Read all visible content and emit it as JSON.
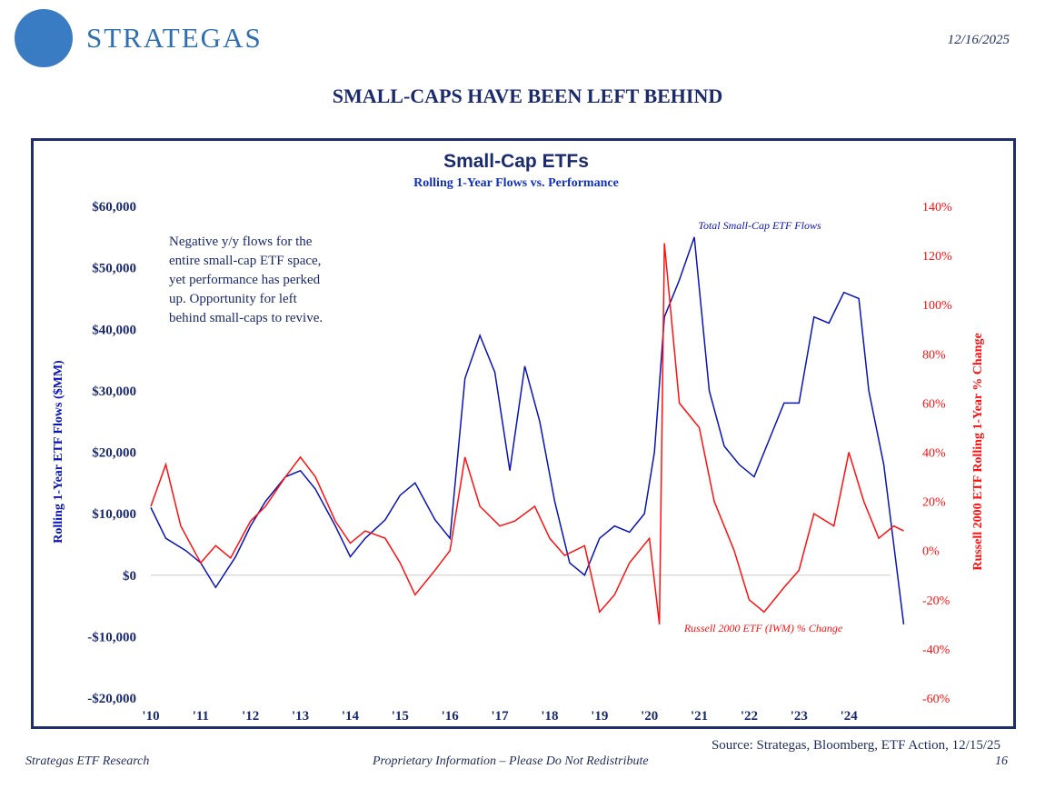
{
  "header": {
    "brand": "STRATEGAS",
    "date": "12/16/2025",
    "title": "SMALL-CAPS HAVE BEEN LEFT BEHIND"
  },
  "footer": {
    "source": "Source: Strategas, Bloomberg, ETF Action, 12/15/25",
    "left": "Strategas ETF Research",
    "center": "Proprietary Information – Please Do Not Redistribute",
    "page": "16"
  },
  "annotation": [
    "Negative y/y flows for the",
    "entire small-cap ETF space,",
    "yet performance has perked",
    "up. Opportunity for left",
    "behind small-caps to revive."
  ],
  "chart_data": {
    "type": "line",
    "title": "Small-Cap ETFs",
    "subtitle": "Rolling 1-Year Flows vs. Performance",
    "ylabel": "Rolling 1-Year ETF Flows ($MM)",
    "y2label": "Russell 2000 ETF Rolling 1-Year % Change",
    "ylim": [
      -20000,
      60000
    ],
    "y2lim": [
      -60,
      140
    ],
    "yticks": [
      "$60,000",
      "$50,000",
      "$40,000",
      "$30,000",
      "$20,000",
      "$10,000",
      "$0",
      "-$10,000",
      "-$20,000"
    ],
    "y2ticks": [
      "140%",
      "120%",
      "100%",
      "80%",
      "60%",
      "40%",
      "20%",
      "0%",
      "-20%",
      "-40%",
      "-60%"
    ],
    "xticks": [
      "'10",
      "'11",
      "'12",
      "'13",
      "'14",
      "'15",
      "'16",
      "'17",
      "'18",
      "'19",
      "'20",
      "'21",
      "'22",
      "'23",
      "'24"
    ],
    "xlim": [
      2010,
      2025.2
    ],
    "series": [
      {
        "name": "Total Small-Cap ETF Flows",
        "axis": "left",
        "color": "#0a14b4",
        "x": [
          2010,
          2010.3,
          2010.7,
          2011,
          2011.3,
          2011.7,
          2012,
          2012.3,
          2012.7,
          2013,
          2013.3,
          2013.7,
          2014,
          2014.3,
          2014.7,
          2015,
          2015.3,
          2015.7,
          2016,
          2016.3,
          2016.6,
          2016.9,
          2017.2,
          2017.5,
          2017.8,
          2018.1,
          2018.4,
          2018.7,
          2019,
          2019.3,
          2019.6,
          2019.9,
          2020.1,
          2020.3,
          2020.6,
          2020.9,
          2021.2,
          2021.5,
          2021.8,
          2022.1,
          2022.4,
          2022.7,
          2023,
          2023.3,
          2023.6,
          2023.9,
          2024.2,
          2024.4,
          2024.7,
          2024.9,
          2025.1
        ],
        "values": [
          11000,
          6000,
          4000,
          2000,
          -2000,
          3000,
          8000,
          12000,
          16000,
          17000,
          14000,
          8000,
          3000,
          6000,
          9000,
          13000,
          15000,
          9000,
          6000,
          32000,
          39000,
          33000,
          17000,
          34000,
          25000,
          12000,
          2000,
          0,
          6000,
          8000,
          7000,
          10000,
          20000,
          42000,
          48000,
          55000,
          30000,
          21000,
          18000,
          16000,
          22000,
          28000,
          28000,
          42000,
          41000,
          46000,
          45000,
          30000,
          18000,
          5000,
          -8000
        ]
      },
      {
        "name": "Russell 2000 ETF (IWM) % Change",
        "axis": "right",
        "color": "#ff1010",
        "x": [
          2010,
          2010.3,
          2010.6,
          2011,
          2011.3,
          2011.6,
          2012,
          2012.3,
          2012.7,
          2013,
          2013.3,
          2013.7,
          2014,
          2014.3,
          2014.7,
          2015,
          2015.3,
          2015.7,
          2016,
          2016.3,
          2016.6,
          2017,
          2017.3,
          2017.7,
          2018,
          2018.3,
          2018.7,
          2019,
          2019.3,
          2019.6,
          2020,
          2020.2,
          2020.3,
          2020.6,
          2021,
          2021.3,
          2021.7,
          2022,
          2022.3,
          2022.7,
          2023,
          2023.3,
          2023.7,
          2024,
          2024.3,
          2024.6,
          2024.9,
          2025.1
        ],
        "values": [
          18,
          35,
          10,
          -5,
          2,
          -3,
          12,
          18,
          30,
          38,
          30,
          12,
          3,
          8,
          5,
          -5,
          -18,
          -8,
          0,
          38,
          18,
          10,
          12,
          18,
          5,
          -2,
          2,
          -25,
          -18,
          -5,
          5,
          -30,
          125,
          60,
          50,
          20,
          0,
          -20,
          -25,
          -15,
          -8,
          15,
          10,
          40,
          20,
          5,
          10,
          8
        ]
      }
    ],
    "series_labels": [
      "Total Small-Cap ETF Flows",
      "Russell 2000 ETF (IWM) % Change"
    ]
  }
}
